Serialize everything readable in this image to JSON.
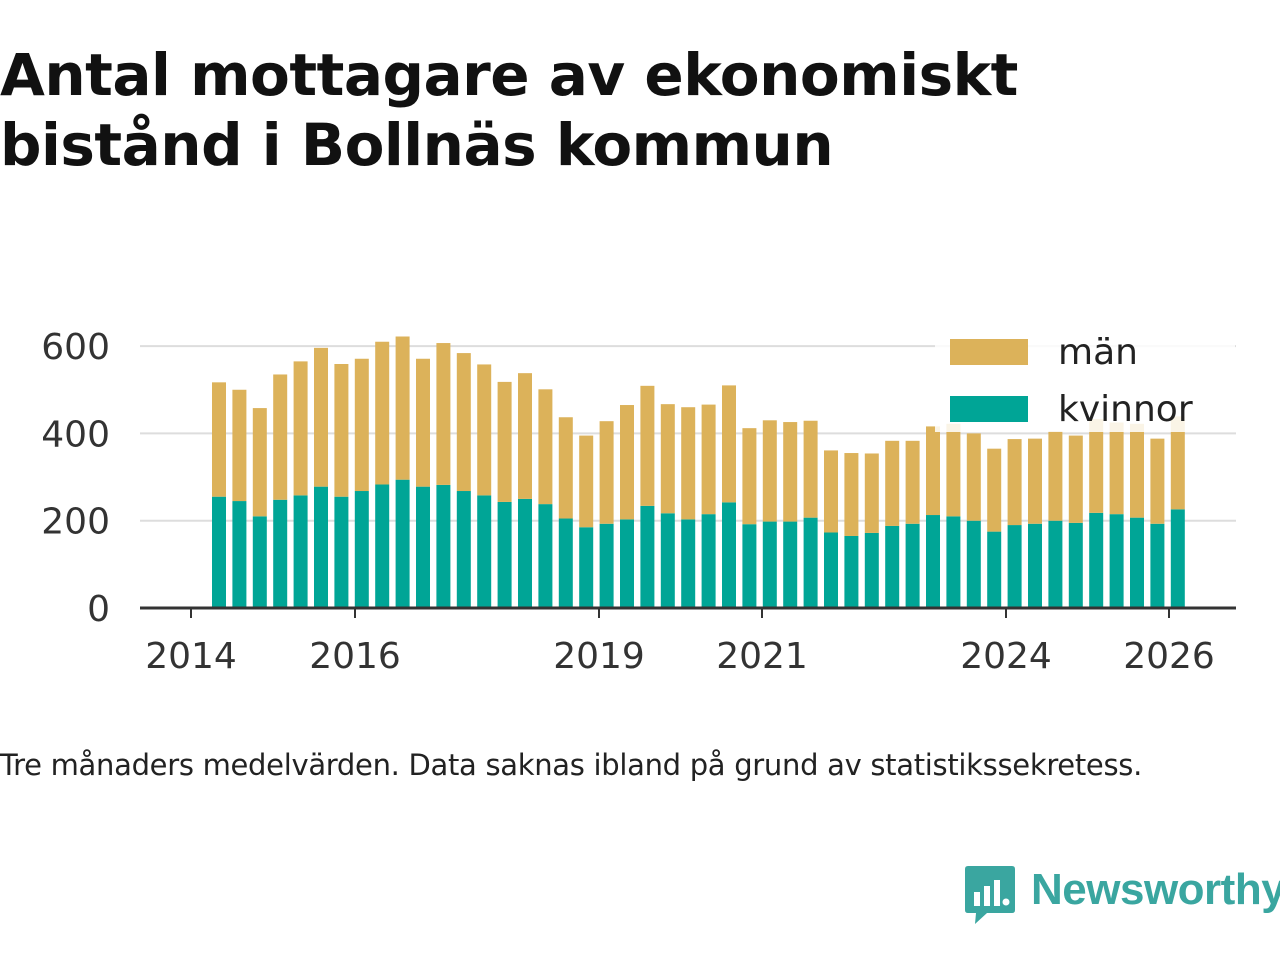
{
  "title": "Antal mottagare av ekonomiskt bistånd i Bollnäs kommun",
  "caption": "Tre månaders medelvärden. Data saknas ibland på grund av statistikssekretess.",
  "brand": {
    "name": "Newsworthy",
    "color": "#3aa6a0",
    "icon": "newsworthy-chart-bubble-icon"
  },
  "chart_data": {
    "type": "bar",
    "stacked": true,
    "x_ticks": [
      "2014",
      "2016",
      "2019",
      "2021",
      "2024",
      "2026"
    ],
    "y_ticks": [
      0,
      200,
      400,
      600
    ],
    "ylim": [
      0,
      640
    ],
    "grid": true,
    "legend_position": "top-right",
    "series": [
      {
        "name": "kvinnor",
        "color": "#00a596",
        "values": [
          255,
          245,
          210,
          248,
          258,
          278,
          255,
          268,
          283,
          294,
          278,
          282,
          268,
          258,
          243,
          250,
          238,
          205,
          185,
          193,
          203,
          234,
          217,
          203,
          215,
          242,
          192,
          198,
          198,
          207,
          173,
          165,
          172,
          188,
          193,
          213,
          210,
          200,
          175,
          190,
          193,
          200,
          195,
          218,
          215,
          207,
          193,
          226
        ]
      },
      {
        "name": "män",
        "color": "#dcb25a",
        "values": [
          262,
          255,
          248,
          287,
          307,
          318,
          304,
          303,
          327,
          328,
          293,
          325,
          316,
          300,
          275,
          288,
          263,
          232,
          210,
          235,
          262,
          275,
          250,
          257,
          251,
          268,
          220,
          232,
          228,
          222,
          188,
          190,
          182,
          195,
          190,
          203,
          212,
          200,
          190,
          197,
          195,
          205,
          200,
          215,
          210,
          215,
          195,
          213
        ]
      }
    ]
  }
}
